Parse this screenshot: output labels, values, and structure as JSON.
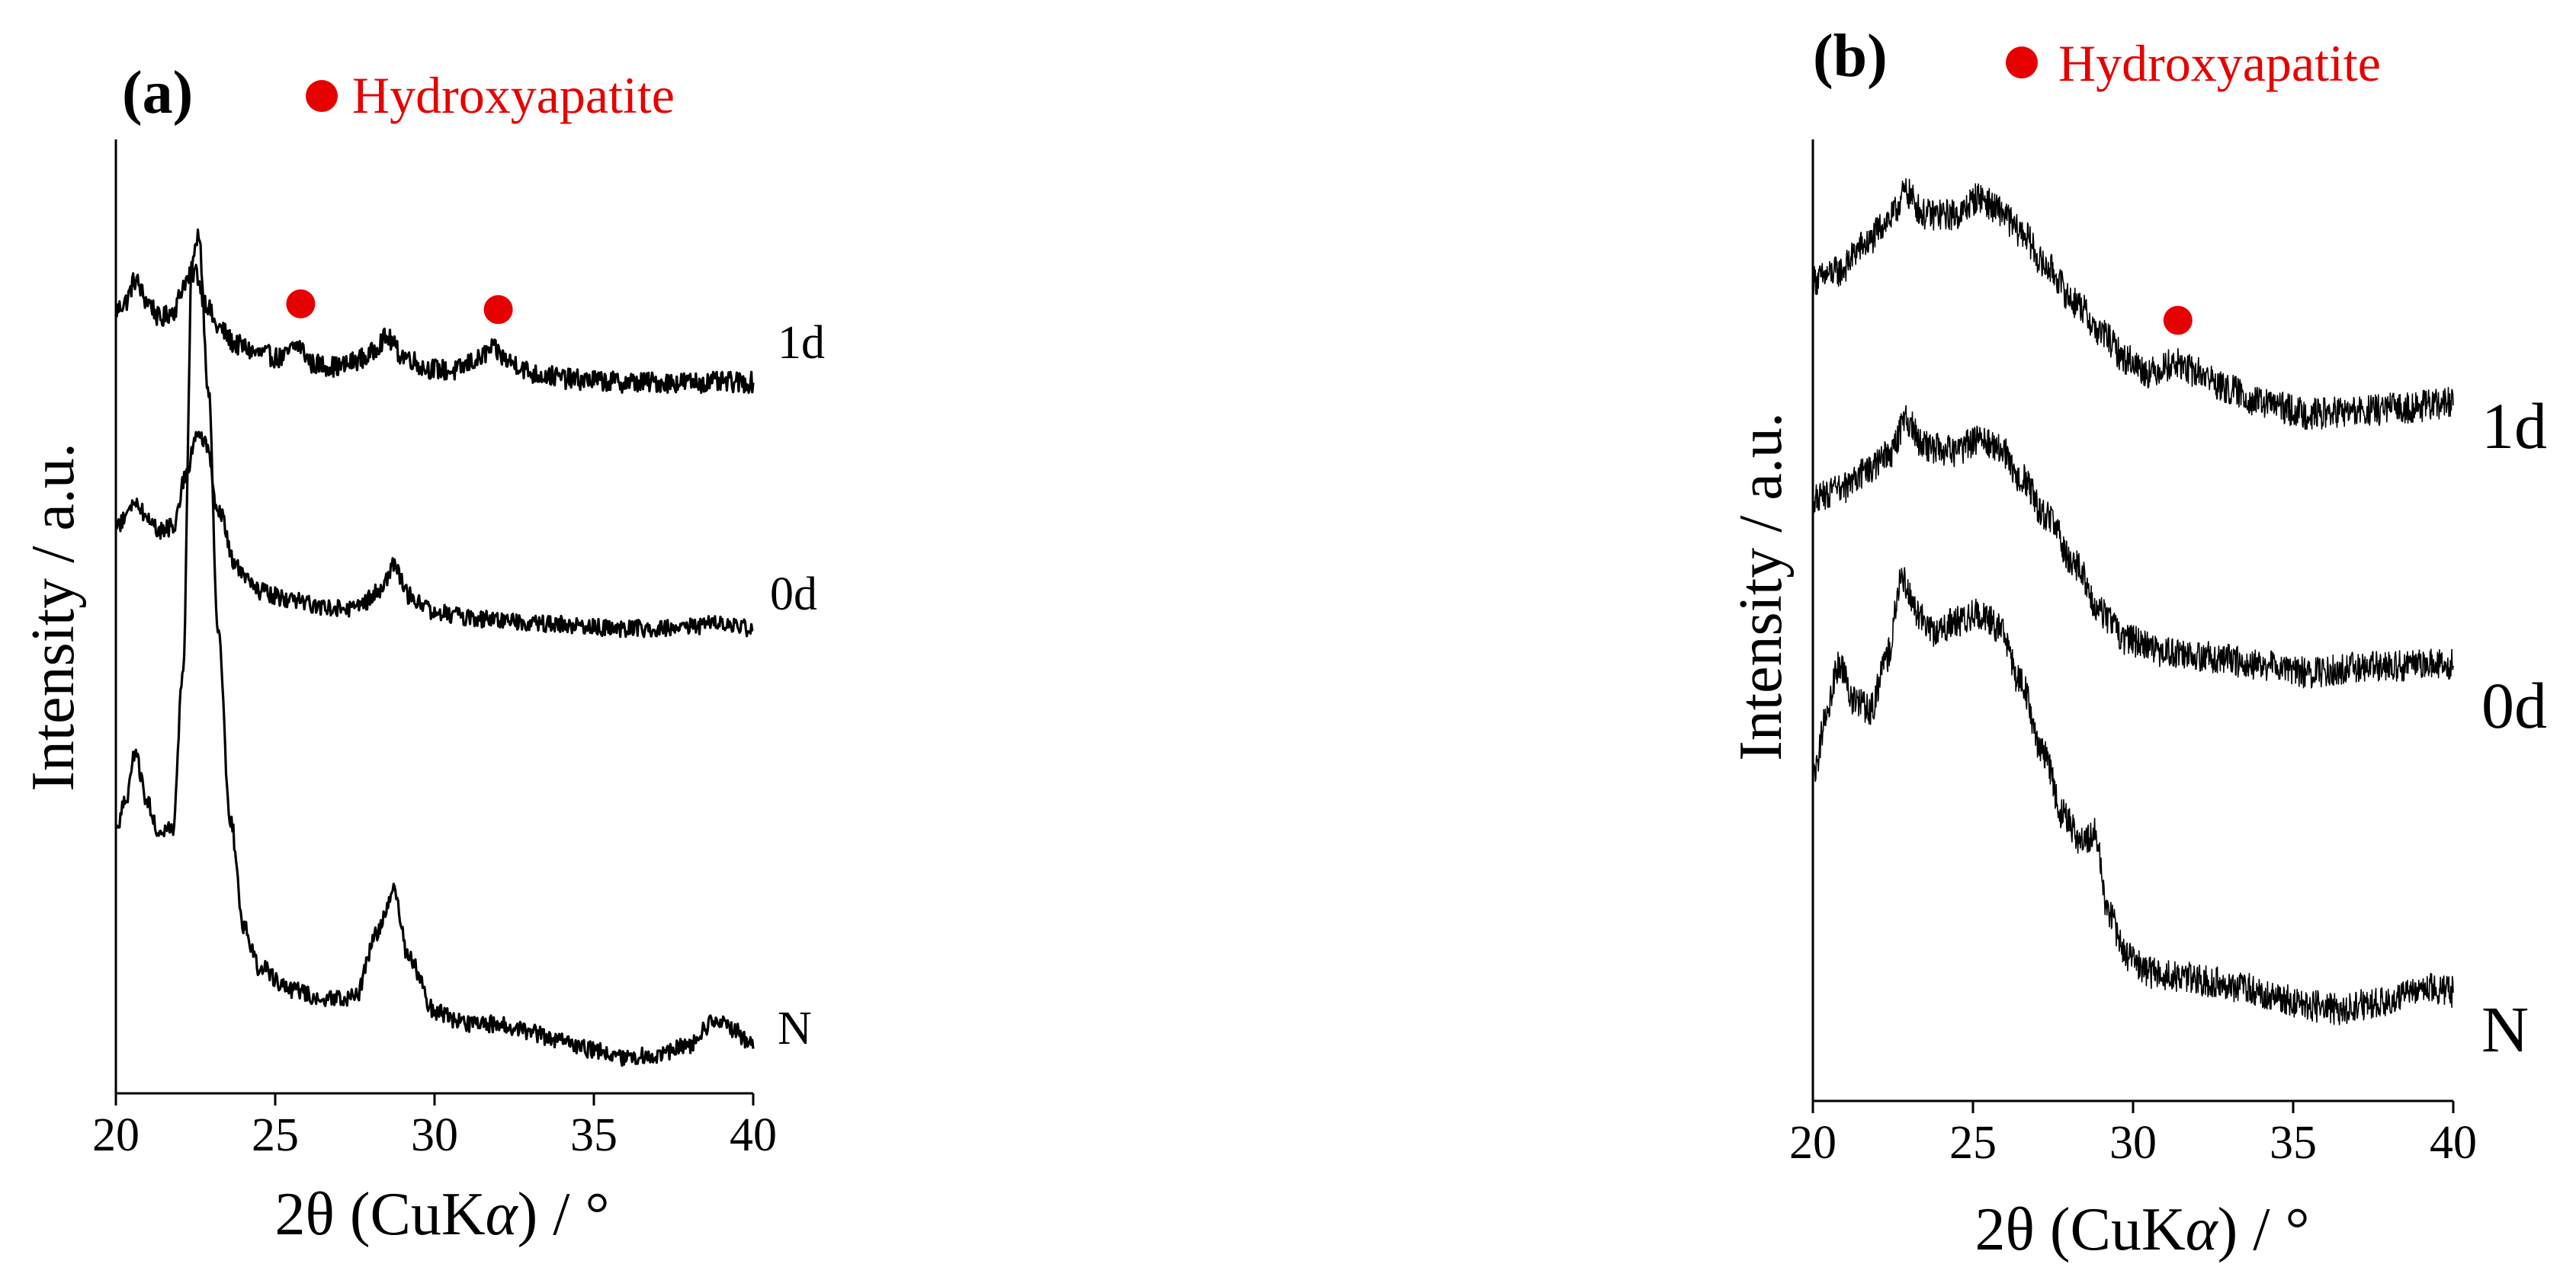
{
  "chart_data": [
    {
      "type": "line",
      "panel_label": "(a)",
      "legend": {
        "marker_color": "#e60000",
        "label": "Hydroxyapatite",
        "placement": "top"
      },
      "xlabel_parts": [
        "2θ (CuK",
        "α",
        ") / °"
      ],
      "ylabel": "Intensity / a.u.",
      "xlim": [
        20,
        40
      ],
      "xticks": [
        "20",
        "25",
        "30",
        "35",
        "40"
      ],
      "line_color": "#000000",
      "series": [
        {
          "name": "1d",
          "base": 0.78,
          "noise": 0.012,
          "points": [
            [
              20,
              0.87
            ],
            [
              20.3,
              0.88
            ],
            [
              20.6,
              0.905
            ],
            [
              21.0,
              0.88
            ],
            [
              21.4,
              0.86
            ],
            [
              21.8,
              0.87
            ],
            [
              22.2,
              0.905
            ],
            [
              22.5,
              0.915
            ],
            [
              22.8,
              0.88
            ],
            [
              23.2,
              0.85
            ],
            [
              23.8,
              0.83
            ],
            [
              24.5,
              0.82
            ],
            [
              25.2,
              0.815
            ],
            [
              25.7,
              0.83
            ],
            [
              26.2,
              0.808
            ],
            [
              27.0,
              0.805
            ],
            [
              27.8,
              0.815
            ],
            [
              28.5,
              0.838
            ],
            [
              29.0,
              0.818
            ],
            [
              29.8,
              0.803
            ],
            [
              30.6,
              0.8
            ],
            [
              31.3,
              0.812
            ],
            [
              31.8,
              0.825
            ],
            [
              32.4,
              0.81
            ],
            [
              33.2,
              0.796
            ],
            [
              34.5,
              0.79
            ],
            [
              36.0,
              0.787
            ],
            [
              38.0,
              0.787
            ],
            [
              40.0,
              0.787
            ]
          ]
        },
        {
          "name": "0d",
          "base": 0.5,
          "noise": 0.01,
          "points": [
            [
              20,
              0.62
            ],
            [
              20.3,
              0.63
            ],
            [
              20.6,
              0.65
            ],
            [
              21.0,
              0.63
            ],
            [
              21.4,
              0.615
            ],
            [
              21.8,
              0.62
            ],
            [
              22.2,
              0.68
            ],
            [
              22.5,
              0.725
            ],
            [
              22.8,
              0.718
            ],
            [
              23.2,
              0.64
            ],
            [
              23.8,
              0.572
            ],
            [
              24.5,
              0.545
            ],
            [
              25.5,
              0.535
            ],
            [
              26.5,
              0.528
            ],
            [
              27.5,
              0.525
            ],
            [
              28.3,
              0.545
            ],
            [
              28.7,
              0.575
            ],
            [
              29.2,
              0.54
            ],
            [
              30.0,
              0.522
            ],
            [
              31.0,
              0.515
            ],
            [
              32.0,
              0.512
            ],
            [
              34.0,
              0.507
            ],
            [
              36.0,
              0.502
            ],
            [
              38.0,
              0.504
            ],
            [
              39.0,
              0.508
            ],
            [
              40.0,
              0.502
            ]
          ]
        },
        {
          "name": "N",
          "base": 0.0,
          "noise": 0.01,
          "points": [
            [
              20,
              0.27
            ],
            [
              20.3,
              0.3
            ],
            [
              20.6,
              0.355
            ],
            [
              21.0,
              0.3
            ],
            [
              21.4,
              0.265
            ],
            [
              21.8,
              0.27
            ],
            [
              22.1,
              0.45
            ],
            [
              22.4,
              0.93
            ],
            [
              22.6,
              0.955
            ],
            [
              22.9,
              0.78
            ],
            [
              23.2,
              0.5
            ],
            [
              23.6,
              0.28
            ],
            [
              24.0,
              0.16
            ],
            [
              24.5,
              0.11
            ],
            [
              25.5,
              0.085
            ],
            [
              26.5,
              0.075
            ],
            [
              27.5,
              0.075
            ],
            [
              28.2,
              0.15
            ],
            [
              28.7,
              0.2
            ],
            [
              29.2,
              0.12
            ],
            [
              30.0,
              0.06
            ],
            [
              31.0,
              0.045
            ],
            [
              32.0,
              0.045
            ],
            [
              33.0,
              0.035
            ],
            [
              34.0,
              0.025
            ],
            [
              35.0,
              0.015
            ],
            [
              36.0,
              0.005
            ],
            [
              37.0,
              0.01
            ],
            [
              38.0,
              0.02
            ],
            [
              38.8,
              0.05
            ],
            [
              39.3,
              0.04
            ],
            [
              40.0,
              0.02
            ]
          ]
        }
      ],
      "markers": [
        {
          "x": 25.8,
          "series": "1d"
        },
        {
          "x": 32.0,
          "series": "1d"
        }
      ]
    },
    {
      "type": "line",
      "panel_label": "(b)",
      "legend": {
        "marker_color": "#e60000",
        "label": "Hydroxyapatite",
        "placement": "top"
      },
      "xlabel_parts": [
        "2θ (CuK",
        "α",
        ") / °"
      ],
      "ylabel": "Intensity / a.u.",
      "xlim": [
        20,
        40
      ],
      "xticks": [
        "20",
        "25",
        "30",
        "35",
        "40"
      ],
      "line_color": "#000000",
      "series": [
        {
          "name": "1d",
          "base": 0.7,
          "noise": 0.018,
          "points": [
            [
              20,
              0.88
            ],
            [
              20.8,
              0.89
            ],
            [
              21.6,
              0.92
            ],
            [
              22.4,
              0.95
            ],
            [
              22.9,
              0.98
            ],
            [
              23.5,
              0.955
            ],
            [
              24.5,
              0.955
            ],
            [
              25.2,
              0.975
            ],
            [
              25.8,
              0.96
            ],
            [
              26.5,
              0.935
            ],
            [
              27.3,
              0.895
            ],
            [
              28.2,
              0.855
            ],
            [
              29.0,
              0.82
            ],
            [
              29.8,
              0.79
            ],
            [
              30.5,
              0.775
            ],
            [
              31.3,
              0.785
            ],
            [
              32.0,
              0.775
            ],
            [
              33.0,
              0.755
            ],
            [
              34.0,
              0.74
            ],
            [
              35.5,
              0.728
            ],
            [
              37.0,
              0.73
            ],
            [
              38.5,
              0.735
            ],
            [
              40.0,
              0.74
            ]
          ]
        },
        {
          "name": "0d",
          "base": 0.4,
          "noise": 0.018,
          "points": [
            [
              20,
              0.63
            ],
            [
              20.8,
              0.64
            ],
            [
              21.6,
              0.66
            ],
            [
              22.4,
              0.68
            ],
            [
              22.9,
              0.72
            ],
            [
              23.5,
              0.69
            ],
            [
              24.5,
              0.685
            ],
            [
              25.2,
              0.7
            ],
            [
              25.8,
              0.69
            ],
            [
              26.5,
              0.655
            ],
            [
              27.3,
              0.61
            ],
            [
              28.2,
              0.555
            ],
            [
              29.0,
              0.5
            ],
            [
              29.8,
              0.47
            ],
            [
              31.0,
              0.455
            ],
            [
              32.5,
              0.45
            ],
            [
              34.0,
              0.44
            ],
            [
              35.5,
              0.432
            ],
            [
              37.0,
              0.438
            ],
            [
              38.5,
              0.44
            ],
            [
              40.0,
              0.442
            ]
          ]
        },
        {
          "name": "N",
          "base": 0.0,
          "noise": 0.018,
          "points": [
            [
              20,
              0.31
            ],
            [
              20.4,
              0.38
            ],
            [
              20.8,
              0.44
            ],
            [
              21.3,
              0.4
            ],
            [
              21.8,
              0.39
            ],
            [
              22.3,
              0.45
            ],
            [
              22.8,
              0.54
            ],
            [
              23.3,
              0.5
            ],
            [
              23.8,
              0.48
            ],
            [
              24.5,
              0.49
            ],
            [
              25.2,
              0.5
            ],
            [
              25.8,
              0.485
            ],
            [
              26.5,
              0.42
            ],
            [
              27.2,
              0.34
            ],
            [
              27.8,
              0.27
            ],
            [
              28.4,
              0.24
            ],
            [
              28.8,
              0.25
            ],
            [
              29.2,
              0.16
            ],
            [
              29.8,
              0.11
            ],
            [
              30.5,
              0.09
            ],
            [
              31.5,
              0.085
            ],
            [
              32.5,
              0.08
            ],
            [
              33.5,
              0.072
            ],
            [
              34.5,
              0.062
            ],
            [
              35.5,
              0.052
            ],
            [
              36.5,
              0.048
            ],
            [
              37.5,
              0.055
            ],
            [
              38.5,
              0.065
            ],
            [
              39.3,
              0.072
            ],
            [
              40.0,
              0.068
            ]
          ]
        }
      ],
      "markers": [
        {
          "x": 31.4,
          "series": "1d"
        }
      ]
    }
  ]
}
